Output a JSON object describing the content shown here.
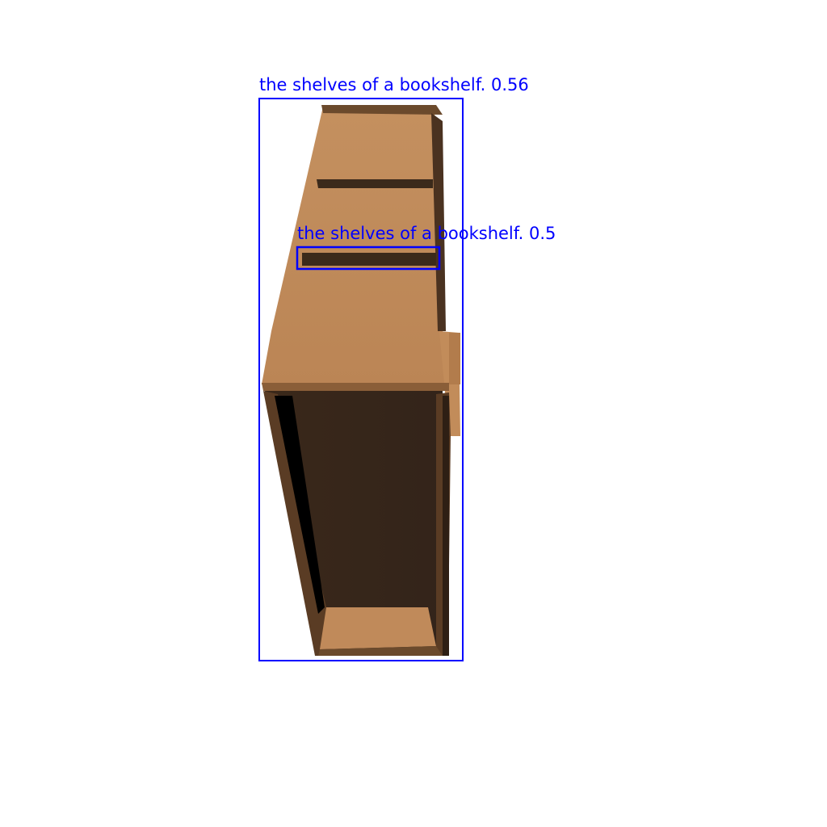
{
  "detections": [
    {
      "label": "the shelves of a bookshelf. 0.56",
      "color": "#0000ff"
    },
    {
      "label": "the shelves of a bookshelf. 0.5",
      "color": "#0000ff"
    }
  ],
  "colors": {
    "background": "#ffffff",
    "wood_light": "#c08a5a",
    "wood_mid": "#9a6a42",
    "wood_dark": "#3a281a",
    "shadow": "#000000"
  }
}
